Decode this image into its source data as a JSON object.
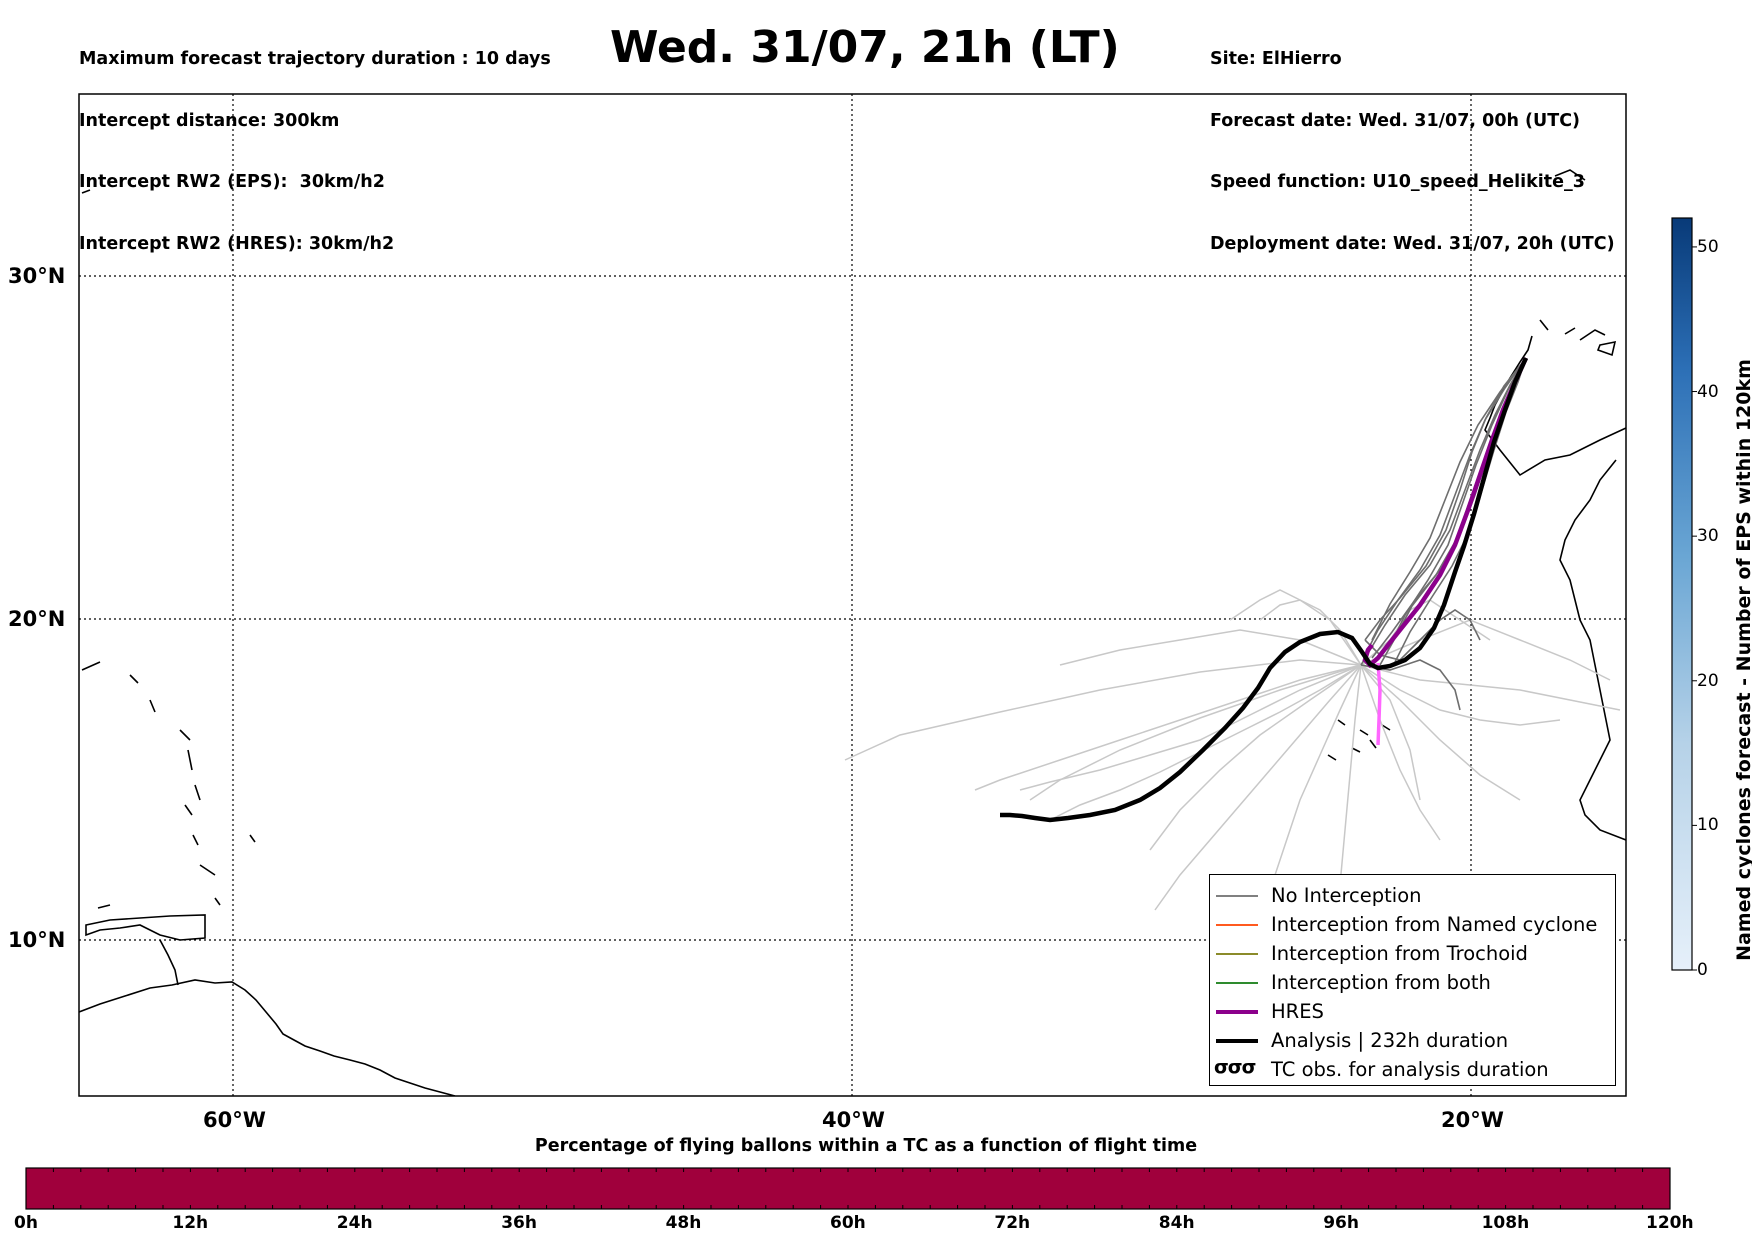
{
  "header": {
    "info_left": [
      "Maximum forecast trajectory duration : 10 days",
      "Intercept distance: 300km",
      "Intercept RW2 (EPS):  30km/h2",
      "Intercept RW2 (HRES): 30km/h2"
    ],
    "title": "Wed. 31/07, 21h (LT)",
    "info_right": [
      "Site: ElHierro",
      "Forecast date: Wed. 31/07, 00h (UTC)",
      "Speed function: U10_speed_Helikite_3",
      "Deployment date: Wed. 31/07, 20h (UTC)"
    ]
  },
  "map": {
    "lat_labels": [
      "30°N",
      "20°N",
      "10°N"
    ],
    "lon_labels": [
      "60°W",
      "40°W",
      "20°W"
    ],
    "lat_values": [
      30,
      20,
      10
    ],
    "lon_values": [
      -60,
      -40,
      -20
    ],
    "colors": {
      "no_interception": "#808080",
      "named_cyclone": "#ff5a1f",
      "trochoid": "#8b8b2a",
      "both": "#2e8b2e",
      "hres": "#8b008b",
      "analysis": "#000000",
      "hres_tail": "#ff66ff"
    }
  },
  "legend": {
    "items": [
      {
        "label": "No Interception",
        "color": "#808080",
        "style": "thin"
      },
      {
        "label": "Interception from Named cyclone",
        "color": "#ff5a1f",
        "style": "thin"
      },
      {
        "label": "Interception from Trochoid",
        "color": "#8b8b2a",
        "style": "thin"
      },
      {
        "label": "Interception from both",
        "color": "#2e8b2e",
        "style": "thin"
      },
      {
        "label": "HRES",
        "color": "#8b008b",
        "style": "thick"
      },
      {
        "label": "Analysis | 232h duration",
        "color": "#000000",
        "style": "thick"
      },
      {
        "label": "TC obs. for analysis duration",
        "color": "#000000",
        "style": "symbol"
      }
    ]
  },
  "colorbar": {
    "label": "Named cyclones forecast - Number of EPS within 120km",
    "ticks": [
      0,
      10,
      20,
      30,
      40,
      50
    ],
    "max": 52
  },
  "time_bar": {
    "title": "Percentage of flying ballons within a TC as a function of flight time",
    "ticks": [
      "0h",
      "12h",
      "24h",
      "36h",
      "48h",
      "60h",
      "72h",
      "84h",
      "96h",
      "108h",
      "120h"
    ],
    "fill_color": "#a0003c"
  }
}
